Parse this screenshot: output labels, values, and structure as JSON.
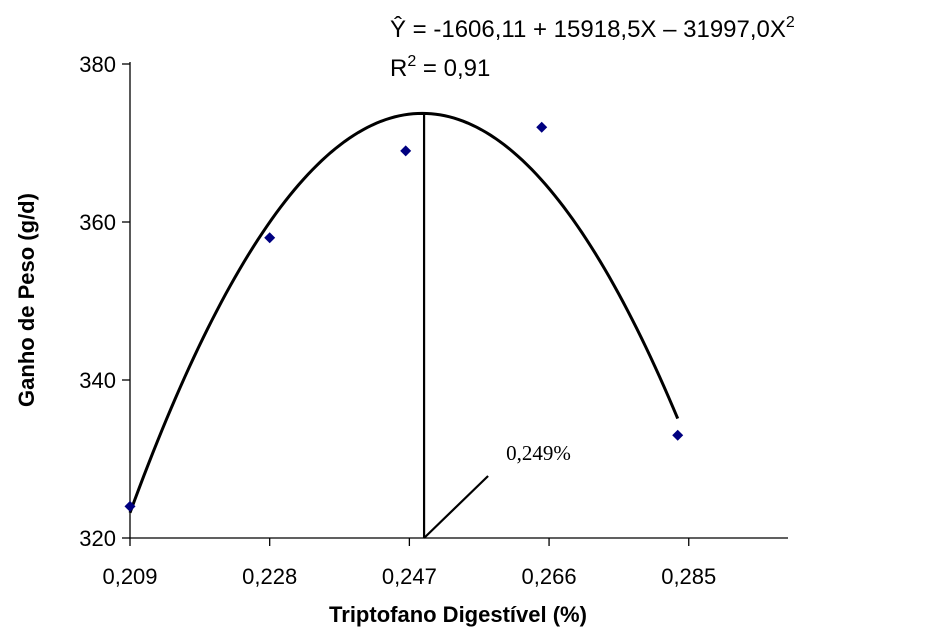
{
  "chart_data": {
    "type": "scatter",
    "x": [
      0.209,
      0.228,
      0.2465,
      0.265,
      0.2835
    ],
    "y": [
      324,
      358,
      369,
      372,
      333
    ],
    "xlabel": "Triptofano Digestível (%)",
    "ylabel": "Ganho de Peso (g/d)",
    "xticks": [
      "0,209",
      "0,228",
      "0,247",
      "0,266",
      "0,285"
    ],
    "xtick_values": [
      0.209,
      0.228,
      0.247,
      0.266,
      0.285
    ],
    "yticks": [
      "320",
      "340",
      "360",
      "380"
    ],
    "ytick_values": [
      320,
      340,
      360,
      380
    ],
    "xlim": [
      0.209,
      0.2985
    ],
    "ylim": [
      320,
      380
    ],
    "marker_color": "#000080",
    "grid": false,
    "fit": {
      "type": "quadratic",
      "intercept": -1606.11,
      "b1": 15918.5,
      "b2": -31997.0,
      "x_range": [
        0.209,
        0.2835
      ],
      "equation_prefix": "Ŷ = -1606,11 + 15918,5X – 31997,0X",
      "equation_sup": "2",
      "r2_prefix": "R",
      "r2_sup": "2",
      "r2_suffix": " = 0,91"
    },
    "optimum": {
      "x": 0.249,
      "label": "0,249%"
    }
  }
}
